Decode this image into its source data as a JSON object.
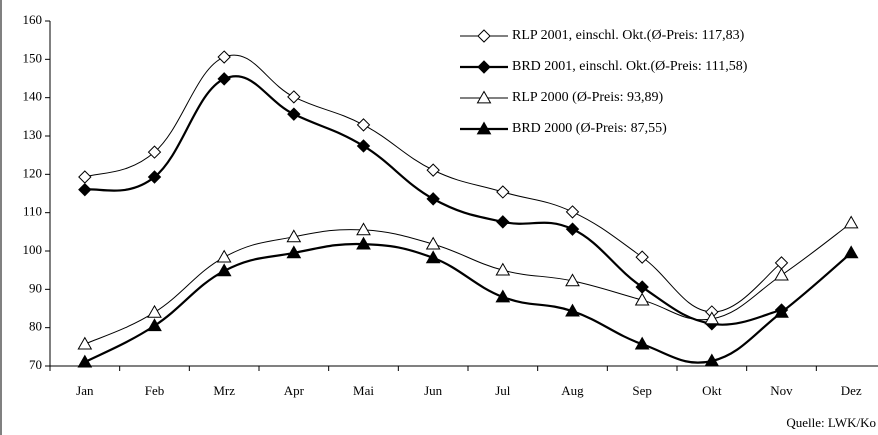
{
  "chart_data": {
    "type": "line",
    "categories": [
      "Jan",
      "Feb",
      "Mrz",
      "Apr",
      "Mai",
      "Jun",
      "Jul",
      "Aug",
      "Sep",
      "Okt",
      "Nov",
      "Dez"
    ],
    "series": [
      {
        "name": "RLP 2001, einschl. Okt.(Ø-Preis: 117,83)",
        "color": "#000000",
        "marker": "diamond-open",
        "width": 1,
        "values": [
          119.3,
          125.8,
          150.6,
          140.2,
          132.9,
          121.1,
          115.4,
          110.2,
          98.4,
          84.1,
          96.9,
          null
        ]
      },
      {
        "name": "BRD 2001, einschl. Okt.(Ø-Preis: 111,58)",
        "color": "#000000",
        "marker": "diamond-filled",
        "width": 2.2,
        "values": [
          116,
          119.3,
          144.9,
          135.7,
          127.4,
          113.6,
          107.6,
          105.7,
          90.6,
          81,
          84.6,
          null
        ]
      },
      {
        "name": "RLP 2000 (Ø-Preis: 93,89)",
        "color": "#000000",
        "marker": "triangle-open",
        "width": 1,
        "values": [
          75.7,
          84,
          98.4,
          103.7,
          105.5,
          101.8,
          95,
          92.2,
          87.2,
          82.3,
          93.7,
          107.3
        ]
      },
      {
        "name": "BRD 2000 (Ø-Preis: 87,55)",
        "color": "#000000",
        "marker": "triangle-filled",
        "width": 2.2,
        "values": [
          71,
          80.5,
          94.8,
          99.5,
          101.8,
          98.2,
          88,
          84.3,
          75.7,
          71.3,
          84,
          99.5
        ]
      }
    ],
    "ylim": [
      70,
      160
    ],
    "yticks": [
      70,
      80,
      90,
      100,
      110,
      120,
      130,
      140,
      150,
      160
    ],
    "source": "Quelle: LWK/Ko"
  }
}
